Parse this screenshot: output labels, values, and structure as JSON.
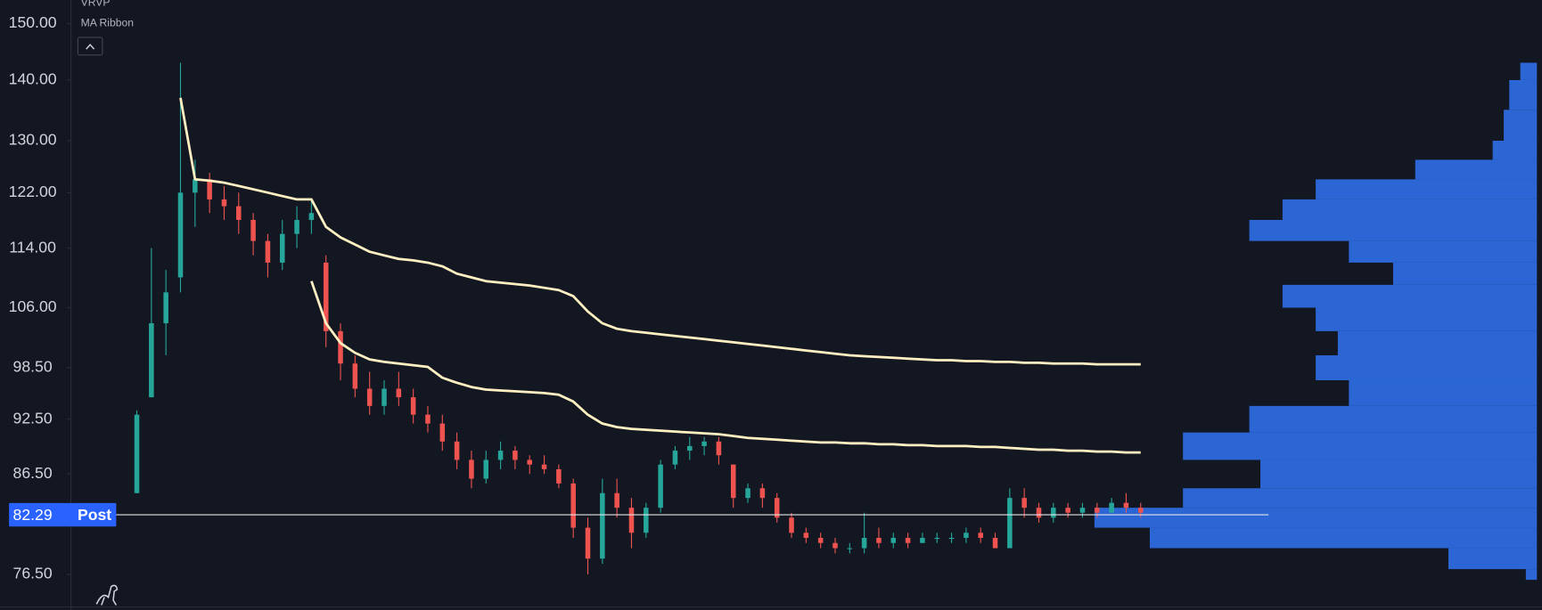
{
  "chart_data": {
    "type": "candlestick",
    "indicators": [
      "VRVP",
      "MA Ribbon"
    ],
    "log_scale": true,
    "ylim": [
      73.6,
      154.4
    ],
    "yticks": [
      {
        "value": 76.5,
        "label": "76.50"
      },
      {
        "value": 86.5,
        "label": "86.50"
      },
      {
        "value": 92.5,
        "label": "92.50"
      },
      {
        "value": 98.5,
        "label": "98.50"
      },
      {
        "value": 106,
        "label": "106.00"
      },
      {
        "value": 114,
        "label": "114.00"
      },
      {
        "value": 122,
        "label": "122.00"
      },
      {
        "value": 130,
        "label": "130.00"
      },
      {
        "value": 140,
        "label": "140.00"
      },
      {
        "value": 150,
        "label": "150.00"
      }
    ],
    "up_color": "#26a69a",
    "down_color": "#ef5350",
    "open": [
      84.5,
      95,
      104,
      110,
      122,
      124,
      121,
      120,
      118,
      115,
      112,
      116,
      118,
      112,
      103,
      99,
      96,
      94,
      96,
      95,
      93,
      92,
      90,
      88,
      86,
      88,
      89,
      88,
      87.5,
      87,
      85.5,
      81,
      78,
      84.5,
      83,
      80.5,
      83,
      87.5,
      89,
      89.5,
      90,
      87.5,
      84,
      85,
      84,
      82,
      80.5,
      80,
      79.5,
      79,
      79,
      80,
      79.5,
      80,
      79.5,
      80,
      80,
      80,
      80.5,
      80,
      79,
      84,
      83,
      82,
      83,
      82.5,
      83,
      82.5,
      83.5,
      83
    ],
    "high": [
      93.5,
      114,
      111,
      143,
      127,
      125,
      123,
      122,
      119,
      116,
      118,
      120,
      121,
      113,
      104,
      100,
      98,
      97,
      98,
      96,
      94,
      93,
      91,
      89,
      89,
      90,
      89.5,
      88.5,
      88.5,
      87.5,
      86,
      82,
      86,
      86,
      84,
      83.5,
      88,
      89.5,
      90.5,
      90.5,
      90.5,
      87.5,
      85.5,
      85.5,
      84.5,
      82.5,
      81,
      80.5,
      80,
      79.5,
      82.5,
      81,
      80.5,
      80.5,
      80.5,
      80.5,
      80.5,
      81,
      81,
      80.5,
      85,
      85,
      83.5,
      83.5,
      83.5,
      83.5,
      83.5,
      84,
      84.5,
      83.5
    ],
    "low": [
      84.5,
      95,
      100,
      108,
      117,
      119,
      118,
      116,
      113,
      110,
      111,
      114,
      116,
      101,
      97,
      95,
      93,
      93,
      94,
      92,
      91,
      89,
      87,
      85,
      85.5,
      87,
      87,
      86.5,
      86.5,
      85,
      80,
      76.5,
      77.5,
      82,
      79,
      80,
      82.5,
      87,
      88,
      88.5,
      87.5,
      83,
      83.5,
      83,
      81.5,
      80,
      79.5,
      79,
      78.5,
      78.5,
      78.5,
      79,
      79,
      79,
      79.5,
      79.5,
      79.5,
      79.5,
      79.5,
      79,
      79,
      82,
      81.5,
      81.5,
      82,
      82,
      82,
      82.5,
      82.5,
      82
    ],
    "close": [
      93,
      104,
      108,
      122,
      124,
      121,
      120,
      118,
      115,
      112,
      116,
      118,
      119,
      103,
      99,
      96,
      94,
      96,
      95,
      93,
      92,
      90,
      88,
      86,
      88,
      89,
      88,
      87.5,
      87,
      85.5,
      81,
      78,
      84.5,
      83,
      80.5,
      83,
      87.5,
      89,
      89.5,
      90,
      88.5,
      84,
      85,
      84,
      82,
      80.5,
      80,
      79.5,
      79,
      79,
      80,
      79.5,
      80,
      79.5,
      80,
      80,
      80,
      80.5,
      80,
      79,
      84,
      83,
      82,
      83,
      82.5,
      83,
      82.5,
      83.5,
      83,
      82.5
    ],
    "series": [
      {
        "color": "#fff0c2",
        "values": [
          null,
          null,
          null,
          137,
          124,
          123.8,
          123.5,
          123,
          122.5,
          122,
          121.5,
          121,
          121,
          117,
          115.5,
          114.5,
          113.5,
          113,
          112.5,
          112.3,
          112,
          111.5,
          110.5,
          110,
          109.5,
          109.3,
          109.1,
          108.9,
          108.6,
          108.3,
          107.5,
          105.5,
          104,
          103.3,
          103,
          102.8,
          102.6,
          102.4,
          102.2,
          102,
          101.8,
          101.6,
          101.4,
          101.2,
          101,
          100.8,
          100.6,
          100.4,
          100.2,
          100,
          99.9,
          99.8,
          99.7,
          99.6,
          99.5,
          99.4,
          99.4,
          99.3,
          99.3,
          99.2,
          99.2,
          99.1,
          99.1,
          99,
          99,
          99,
          98.9,
          98.9,
          98.9,
          98.9
        ]
      },
      {
        "color": "#fff0c2",
        "values": [
          null,
          null,
          null,
          null,
          null,
          null,
          null,
          null,
          null,
          null,
          null,
          null,
          109.5,
          104,
          101.5,
          100.3,
          99.5,
          99.2,
          99,
          98.8,
          98.6,
          97.3,
          96.7,
          96.2,
          95.9,
          95.8,
          95.7,
          95.6,
          95.5,
          95.3,
          94.5,
          93,
          92,
          91.6,
          91.4,
          91.3,
          91.2,
          91.1,
          91,
          90.9,
          90.8,
          90.6,
          90.4,
          90.3,
          90.2,
          90.1,
          90,
          89.9,
          89.9,
          89.8,
          89.8,
          89.7,
          89.7,
          89.6,
          89.6,
          89.5,
          89.5,
          89.5,
          89.4,
          89.4,
          89.3,
          89.2,
          89.1,
          89.1,
          89,
          89,
          88.9,
          88.9,
          88.8,
          88.8
        ]
      }
    ],
    "volume_profile": {
      "color": "#2f6fe8",
      "bins": [
        76,
        77,
        79,
        81,
        83,
        85,
        88,
        91,
        94,
        97,
        100,
        103,
        106,
        109,
        112,
        115,
        118,
        121,
        124,
        127,
        130,
        135,
        140,
        143
      ],
      "values": [
        10,
        80,
        350,
        400,
        320,
        250,
        320,
        260,
        170,
        200,
        180,
        200,
        230,
        130,
        170,
        260,
        230,
        200,
        110,
        40,
        30,
        25,
        15
      ]
    },
    "last_price": {
      "value": 82.29,
      "tag": "Post",
      "color": "#2962ff"
    }
  }
}
